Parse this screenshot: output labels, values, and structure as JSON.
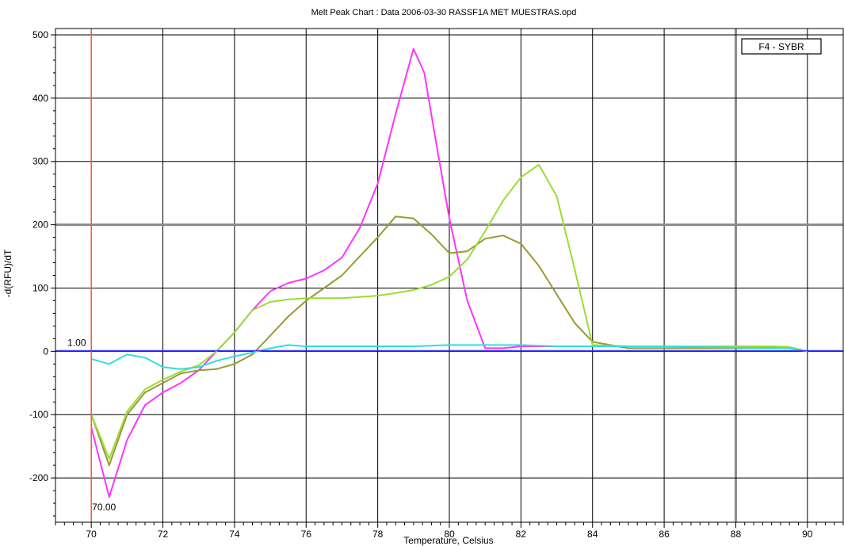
{
  "chart_data": {
    "type": "line",
    "title": "Melt Peak Chart : Data 2006-03-30 RASSF1A MET MUESTRAS.opd",
    "xlabel": "Temperature, Celsius",
    "ylabel": "-d(RFU)/dT",
    "xlim": [
      69,
      91
    ],
    "ylim": [
      -270,
      510
    ],
    "x_ticks": [
      70,
      72,
      74,
      76,
      78,
      80,
      82,
      84,
      86,
      88,
      90
    ],
    "y_ticks": [
      -200,
      -100,
      0,
      100,
      200,
      300,
      400,
      500
    ],
    "grid": true,
    "legend": {
      "label": "F4 - SYBR",
      "position": "top-right"
    },
    "cursor": {
      "x": 70,
      "y": 1,
      "x_label": "70.00",
      "y_label": "1.00"
    },
    "colors": {
      "vertical_cursor": "#ff5a3c",
      "horizontal_cursor": "#3c3cff"
    },
    "series": [
      {
        "color": "#ff33ff",
        "x": [
          70,
          70.5,
          71,
          71.5,
          72,
          72.5,
          73,
          73.5,
          74,
          74.5,
          75,
          75.5,
          76,
          76.5,
          77,
          77.5,
          78,
          78.5,
          79,
          79.3,
          79.6,
          80,
          80.5,
          81,
          81.5,
          82,
          83,
          84,
          85,
          86,
          87,
          88,
          89,
          89.5,
          90
        ],
        "y": [
          -120,
          -230,
          -140,
          -85,
          -65,
          -50,
          -30,
          0,
          30,
          65,
          95,
          108,
          115,
          128,
          148,
          195,
          265,
          375,
          478,
          440,
          340,
          210,
          80,
          5,
          5,
          8,
          8,
          8,
          8,
          8,
          8,
          8,
          6,
          5,
          0
        ]
      },
      {
        "color": "#999933",
        "x": [
          70,
          70.5,
          71,
          71.5,
          72,
          72.5,
          73,
          73.5,
          74,
          74.5,
          75,
          75.5,
          76,
          76.5,
          77,
          77.5,
          78,
          78.5,
          79,
          79.5,
          80,
          80.5,
          81,
          81.5,
          82,
          82.5,
          83,
          83.5,
          84,
          85,
          86,
          87,
          88,
          89,
          89.5,
          90
        ],
        "y": [
          -100,
          -180,
          -100,
          -65,
          -50,
          -35,
          -30,
          -28,
          -20,
          -5,
          25,
          55,
          80,
          100,
          120,
          150,
          180,
          213,
          210,
          185,
          155,
          158,
          178,
          183,
          170,
          135,
          90,
          45,
          15,
          5,
          5,
          5,
          5,
          5,
          5,
          0
        ]
      },
      {
        "color": "#99dd33",
        "x": [
          70,
          70.5,
          71,
          71.5,
          72,
          72.5,
          73,
          73.5,
          74,
          74.5,
          75,
          75.5,
          76,
          76.5,
          77,
          77.5,
          78,
          78.5,
          79,
          79.5,
          80,
          80.5,
          81,
          81.5,
          82,
          82.5,
          83,
          83.5,
          84,
          85,
          86,
          87,
          88,
          89,
          89.5,
          90
        ],
        "y": [
          -100,
          -170,
          -95,
          -60,
          -45,
          -32,
          -22,
          0,
          30,
          65,
          78,
          82,
          84,
          84,
          84,
          86,
          88,
          92,
          97,
          105,
          118,
          145,
          190,
          238,
          275,
          295,
          245,
          130,
          10,
          8,
          8,
          8,
          8,
          8,
          7,
          0
        ]
      },
      {
        "color": "#33dddd",
        "x": [
          70,
          70.5,
          71,
          71.5,
          72,
          72.5,
          73,
          73.5,
          74,
          74.5,
          75,
          75.5,
          76,
          77,
          78,
          79,
          80,
          81,
          82,
          83,
          84,
          85,
          86,
          87,
          88,
          89,
          89.5,
          90
        ],
        "y": [
          -12,
          -20,
          -5,
          -10,
          -25,
          -28,
          -25,
          -15,
          -8,
          -2,
          5,
          10,
          8,
          8,
          8,
          8,
          10,
          10,
          10,
          8,
          8,
          8,
          8,
          7,
          6,
          5,
          5,
          0
        ]
      }
    ]
  }
}
